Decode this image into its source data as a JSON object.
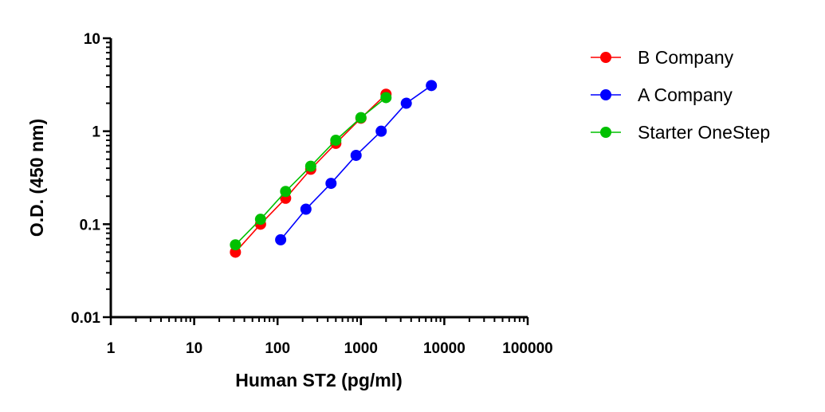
{
  "chart_data": {
    "type": "scatter",
    "title": "",
    "xlabel": "Human ST2 (pg/ml)",
    "ylabel": "O.D. (450 nm)",
    "x_scale": "log",
    "y_scale": "log",
    "xlim": [
      1,
      100000
    ],
    "ylim": [
      0.01,
      10
    ],
    "x_ticks": [
      "1",
      "10",
      "100",
      "1000",
      "10000",
      "100000"
    ],
    "y_ticks": [
      "0.01",
      "0.1",
      "1",
      "10"
    ],
    "grid": false,
    "legend_position": "right",
    "series": [
      {
        "name": "B Company",
        "color": "#ff0000",
        "x": [
          31.25,
          62.5,
          125,
          250,
          500,
          1000,
          2000
        ],
        "y": [
          0.05,
          0.1,
          0.19,
          0.39,
          0.74,
          1.38,
          2.5
        ]
      },
      {
        "name": "A Company",
        "color": "#0000ff",
        "x": [
          109,
          219,
          438,
          875,
          1750,
          3500,
          7000
        ],
        "y": [
          0.068,
          0.145,
          0.275,
          0.55,
          1.0,
          2.0,
          3.1
        ]
      },
      {
        "name": "Starter OneStep",
        "color": "#00c000",
        "x": [
          31.25,
          62.5,
          125,
          250,
          500,
          1000,
          2000
        ],
        "y": [
          0.06,
          0.113,
          0.225,
          0.42,
          0.8,
          1.4,
          2.3
        ]
      }
    ]
  }
}
